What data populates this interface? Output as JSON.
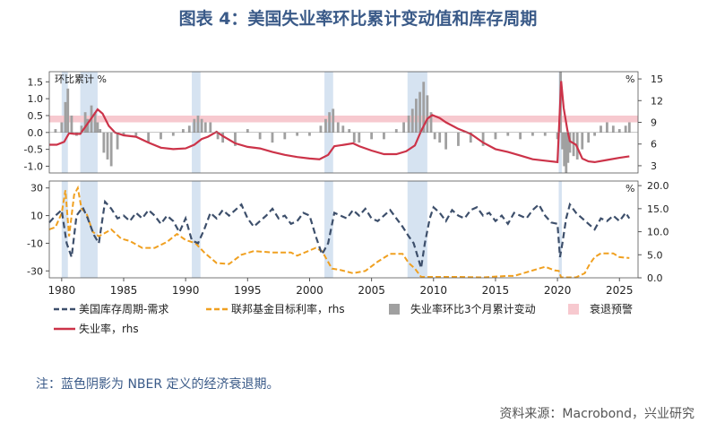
{
  "title": "图表 4：美国失业率环比累计变动值和库存周期",
  "note": "注：蓝色阴影为 NBER 定义的经济衰退期。",
  "source": "资料来源：Macrobond，兴业研究",
  "colors": {
    "recession": "#d6e3f1",
    "warning_band": "#f7c9cf",
    "unemployment": "#cc3349",
    "change_bar": "#a0a0a0",
    "inventory": "#3d4f6b",
    "fed_funds": "#f0a020"
  },
  "chart_data": {
    "type": "line",
    "top_panel": {
      "left_axis_label": "环比累计 %",
      "right_axis_label": "%",
      "ylim_left": [
        -1.2,
        1.8
      ],
      "ylim_right": [
        2,
        16
      ],
      "yticks_left": [
        "1.5",
        "1.0",
        "0.5",
        "0.0",
        "-0.5",
        "-1.0"
      ],
      "yticks_right": [
        "15",
        "12",
        "9",
        "6",
        "3"
      ],
      "warning_band_left": [
        0.3,
        0.5
      ],
      "unemployment_rate": {
        "x": [
          1979.0,
          1979.6,
          1980.2,
          1980.6,
          1981.0,
          1981.5,
          1982.0,
          1982.5,
          1982.9,
          1983.3,
          1983.8,
          1984.3,
          1985.0,
          1986.0,
          1987.0,
          1988.0,
          1989.0,
          1990.0,
          1990.7,
          1991.3,
          1991.8,
          1992.5,
          1993.0,
          1994.0,
          1995.0,
          1996.0,
          1997.0,
          1998.0,
          1999.0,
          2000.0,
          2000.8,
          2001.5,
          2002.0,
          2002.8,
          2003.5,
          2004.0,
          2005.0,
          2006.0,
          2007.0,
          2007.8,
          2008.5,
          2009.0,
          2009.5,
          2009.9,
          2010.5,
          2011.0,
          2012.0,
          2013.0,
          2014.0,
          2015.0,
          2016.0,
          2017.0,
          2018.0,
          2019.0,
          2020.0,
          2020.3,
          2020.5,
          2020.8,
          2021.0,
          2021.5,
          2022.0,
          2022.5,
          2023.0,
          2024.0,
          2025.0,
          2025.8
        ],
        "y": [
          5.9,
          5.9,
          6.3,
          7.5,
          7.4,
          7.4,
          8.6,
          9.8,
          10.8,
          10.2,
          8.5,
          7.6,
          7.2,
          7.0,
          6.2,
          5.5,
          5.3,
          5.4,
          5.9,
          6.7,
          7.0,
          7.7,
          7.1,
          6.1,
          5.6,
          5.4,
          4.9,
          4.5,
          4.2,
          4.0,
          3.9,
          4.5,
          5.7,
          5.9,
          6.1,
          5.7,
          5.1,
          4.6,
          4.6,
          5.0,
          5.8,
          7.8,
          9.5,
          10.0,
          9.6,
          9.0,
          8.1,
          7.4,
          6.2,
          5.3,
          4.9,
          4.4,
          3.9,
          3.7,
          3.5,
          14.7,
          11.0,
          7.9,
          6.4,
          5.9,
          4.0,
          3.6,
          3.5,
          3.8,
          4.1,
          4.3
        ]
      },
      "change_3m_cumulative": {
        "x": [
          1979.5,
          1980.0,
          1980.3,
          1980.5,
          1980.8,
          1981.2,
          1981.6,
          1981.9,
          1982.1,
          1982.4,
          1982.7,
          1982.9,
          1983.1,
          1983.4,
          1983.7,
          1984.0,
          1984.5,
          1985.0,
          1986.0,
          1987.0,
          1988.0,
          1989.0,
          1989.8,
          1990.3,
          1990.7,
          1991.0,
          1991.3,
          1991.6,
          1992.0,
          1992.6,
          1993.0,
          1994.0,
          1995.0,
          1996.0,
          1997.0,
          1998.0,
          1999.0,
          2000.0,
          2000.9,
          2001.3,
          2001.6,
          2001.9,
          2002.3,
          2002.7,
          2003.2,
          2003.6,
          2004.0,
          2005.0,
          2006.0,
          2007.0,
          2007.6,
          2008.0,
          2008.3,
          2008.6,
          2008.9,
          2009.2,
          2009.5,
          2009.8,
          2010.1,
          2010.5,
          2011.0,
          2012.0,
          2013.0,
          2014.0,
          2015.0,
          2016.0,
          2017.0,
          2018.0,
          2019.0,
          2020.0,
          2020.25,
          2020.4,
          2020.55,
          2020.7,
          2020.85,
          2021.0,
          2021.3,
          2021.6,
          2022.0,
          2022.5,
          2023.0,
          2023.5,
          2024.0,
          2024.5,
          2025.0,
          2025.5,
          2025.8
        ],
        "y": [
          0.1,
          0.3,
          0.9,
          1.3,
          0.5,
          -0.1,
          0.2,
          0.6,
          0.4,
          0.8,
          0.6,
          0.3,
          0.1,
          -0.6,
          -0.8,
          -1.0,
          -0.5,
          -0.1,
          -0.1,
          -0.3,
          -0.2,
          -0.1,
          0.1,
          0.2,
          0.4,
          0.5,
          0.4,
          0.3,
          0.3,
          -0.2,
          -0.3,
          -0.4,
          0.1,
          -0.2,
          -0.3,
          -0.2,
          -0.1,
          -0.1,
          0.2,
          0.4,
          0.6,
          0.7,
          0.3,
          0.2,
          0.1,
          -0.3,
          -0.3,
          -0.2,
          -0.2,
          0.1,
          0.3,
          0.5,
          0.7,
          1.0,
          1.2,
          1.5,
          1.1,
          0.6,
          -0.2,
          -0.3,
          -0.5,
          -0.4,
          -0.3,
          -0.4,
          -0.2,
          -0.1,
          -0.2,
          -0.1,
          -0.1,
          -0.2,
          1.8,
          -0.5,
          -1.0,
          -1.2,
          -0.9,
          -0.6,
          -0.7,
          -0.8,
          -0.5,
          -0.3,
          -0.1,
          0.2,
          0.3,
          0.2,
          0.1,
          0.2,
          0.3
        ]
      }
    },
    "bottom_panel": {
      "right_axis_label": "%",
      "ylim_left": [
        -35,
        35
      ],
      "ylim_right": [
        0,
        21
      ],
      "yticks_left": [
        "30",
        "10",
        "-10",
        "-30"
      ],
      "yticks_right": [
        "20.0",
        "15.0",
        "10.0",
        "5.0",
        "0.0"
      ],
      "inventory_cycle_demand": {
        "x": [
          1979.0,
          1979.5,
          1980.0,
          1980.4,
          1980.8,
          1981.2,
          1981.7,
          1982.1,
          1982.6,
          1983.0,
          1983.5,
          1984.0,
          1984.5,
          1985.0,
          1985.5,
          1986.0,
          1986.5,
          1987.0,
          1987.5,
          1988.0,
          1988.5,
          1989.0,
          1989.5,
          1990.0,
          1990.5,
          1991.0,
          1991.5,
          1992.0,
          1992.5,
          1993.0,
          1993.5,
          1994.0,
          1994.5,
          1995.0,
          1995.5,
          1996.0,
          1996.5,
          1997.0,
          1997.5,
          1998.0,
          1998.5,
          1999.0,
          1999.5,
          2000.0,
          2000.5,
          2001.0,
          2001.5,
          2002.0,
          2002.5,
          2003.0,
          2003.5,
          2004.0,
          2004.5,
          2005.0,
          2005.5,
          2006.0,
          2006.5,
          2007.0,
          2007.5,
          2008.0,
          2008.4,
          2008.8,
          2009.0,
          2009.3,
          2009.7,
          2010.0,
          2010.5,
          2011.0,
          2011.5,
          2012.0,
          2012.5,
          2013.0,
          2013.5,
          2014.0,
          2014.5,
          2015.0,
          2015.5,
          2016.0,
          2016.5,
          2017.0,
          2017.5,
          2018.0,
          2018.5,
          2019.0,
          2019.5,
          2020.0,
          2020.2,
          2020.4,
          2020.7,
          2021.0,
          2021.5,
          2022.0,
          2022.5,
          2023.0,
          2023.5,
          2024.0,
          2024.5,
          2025.0,
          2025.5,
          2025.8
        ],
        "y": [
          5,
          10,
          14,
          -10,
          -20,
          10,
          16,
          8,
          -4,
          -10,
          20,
          15,
          8,
          10,
          6,
          12,
          8,
          14,
          10,
          4,
          10,
          6,
          -2,
          8,
          -8,
          -10,
          0,
          12,
          8,
          14,
          10,
          14,
          18,
          8,
          2,
          6,
          10,
          15,
          8,
          10,
          4,
          6,
          12,
          10,
          -5,
          -18,
          -10,
          12,
          10,
          8,
          14,
          10,
          15,
          8,
          6,
          10,
          14,
          8,
          2,
          -5,
          -10,
          -22,
          -28,
          -10,
          8,
          16,
          12,
          6,
          14,
          10,
          8,
          14,
          16,
          10,
          12,
          6,
          10,
          4,
          12,
          10,
          8,
          14,
          18,
          10,
          5,
          4,
          -20,
          -10,
          8,
          18,
          12,
          8,
          4,
          0,
          8,
          6,
          10,
          6,
          12,
          8
        ]
      },
      "fed_funds_rate_rhs": {
        "x": [
          1979.0,
          1979.5,
          1980.0,
          1980.3,
          1980.6,
          1981.0,
          1981.3,
          1981.6,
          1982.0,
          1982.5,
          1983.0,
          1984.0,
          1984.8,
          1985.5,
          1986.5,
          1987.5,
          1988.5,
          1989.3,
          1990.0,
          1990.8,
          1991.5,
          1992.5,
          1993.5,
          1994.5,
          1995.5,
          1997.0,
          1998.5,
          1999.0,
          2000.5,
          2001.0,
          2001.8,
          2002.5,
          2003.5,
          2004.5,
          2005.5,
          2006.5,
          2007.5,
          2008.0,
          2008.5,
          2009.0,
          2010.0,
          2012.0,
          2014.0,
          2015.9,
          2016.5,
          2017.5,
          2018.5,
          2019.0,
          2019.8,
          2020.1,
          2020.3,
          2021.5,
          2022.2,
          2022.6,
          2023.0,
          2023.5,
          2024.5,
          2025.0,
          2025.8
        ],
        "y": [
          10.5,
          11.0,
          14.0,
          19.0,
          9.0,
          18.0,
          19.5,
          15.0,
          14.0,
          10.0,
          9.0,
          10.5,
          8.5,
          8.0,
          6.5,
          6.5,
          7.8,
          9.5,
          8.2,
          7.5,
          5.5,
          3.2,
          3.0,
          5.0,
          5.8,
          5.5,
          5.5,
          4.8,
          6.5,
          5.8,
          2.0,
          1.7,
          1.0,
          1.5,
          3.5,
          5.2,
          5.2,
          3.2,
          2.0,
          0.2,
          0.2,
          0.2,
          0.1,
          0.4,
          0.4,
          1.2,
          2.0,
          2.4,
          1.6,
          1.5,
          0.1,
          0.1,
          1.0,
          3.0,
          4.5,
          5.3,
          5.3,
          4.5,
          4.3
        ]
      }
    },
    "recessions": [
      [
        1980.0,
        1980.5
      ],
      [
        1981.5,
        1982.9
      ],
      [
        1990.5,
        1991.2
      ],
      [
        2001.2,
        2001.9
      ],
      [
        2007.9,
        2009.5
      ],
      [
        2020.1,
        2020.35
      ]
    ],
    "x_range": [
      1979,
      2026.5
    ],
    "x_ticks": [
      "1980",
      "1985",
      "1990",
      "1995",
      "2000",
      "2005",
      "2010",
      "2015",
      "2020",
      "2025"
    ],
    "legend": [
      {
        "key": "inventory",
        "label": "美国库存周期-需求",
        "style": "dash"
      },
      {
        "key": "fed",
        "label": "联邦基金目标利率，rhs",
        "style": "dash"
      },
      {
        "key": "change",
        "label": "失业率环比3个月累计变动",
        "style": "bar"
      },
      {
        "key": "warning",
        "label": "衰退预警",
        "style": "band"
      },
      {
        "key": "unemp",
        "label": "失业率，rhs",
        "style": "line"
      }
    ]
  }
}
